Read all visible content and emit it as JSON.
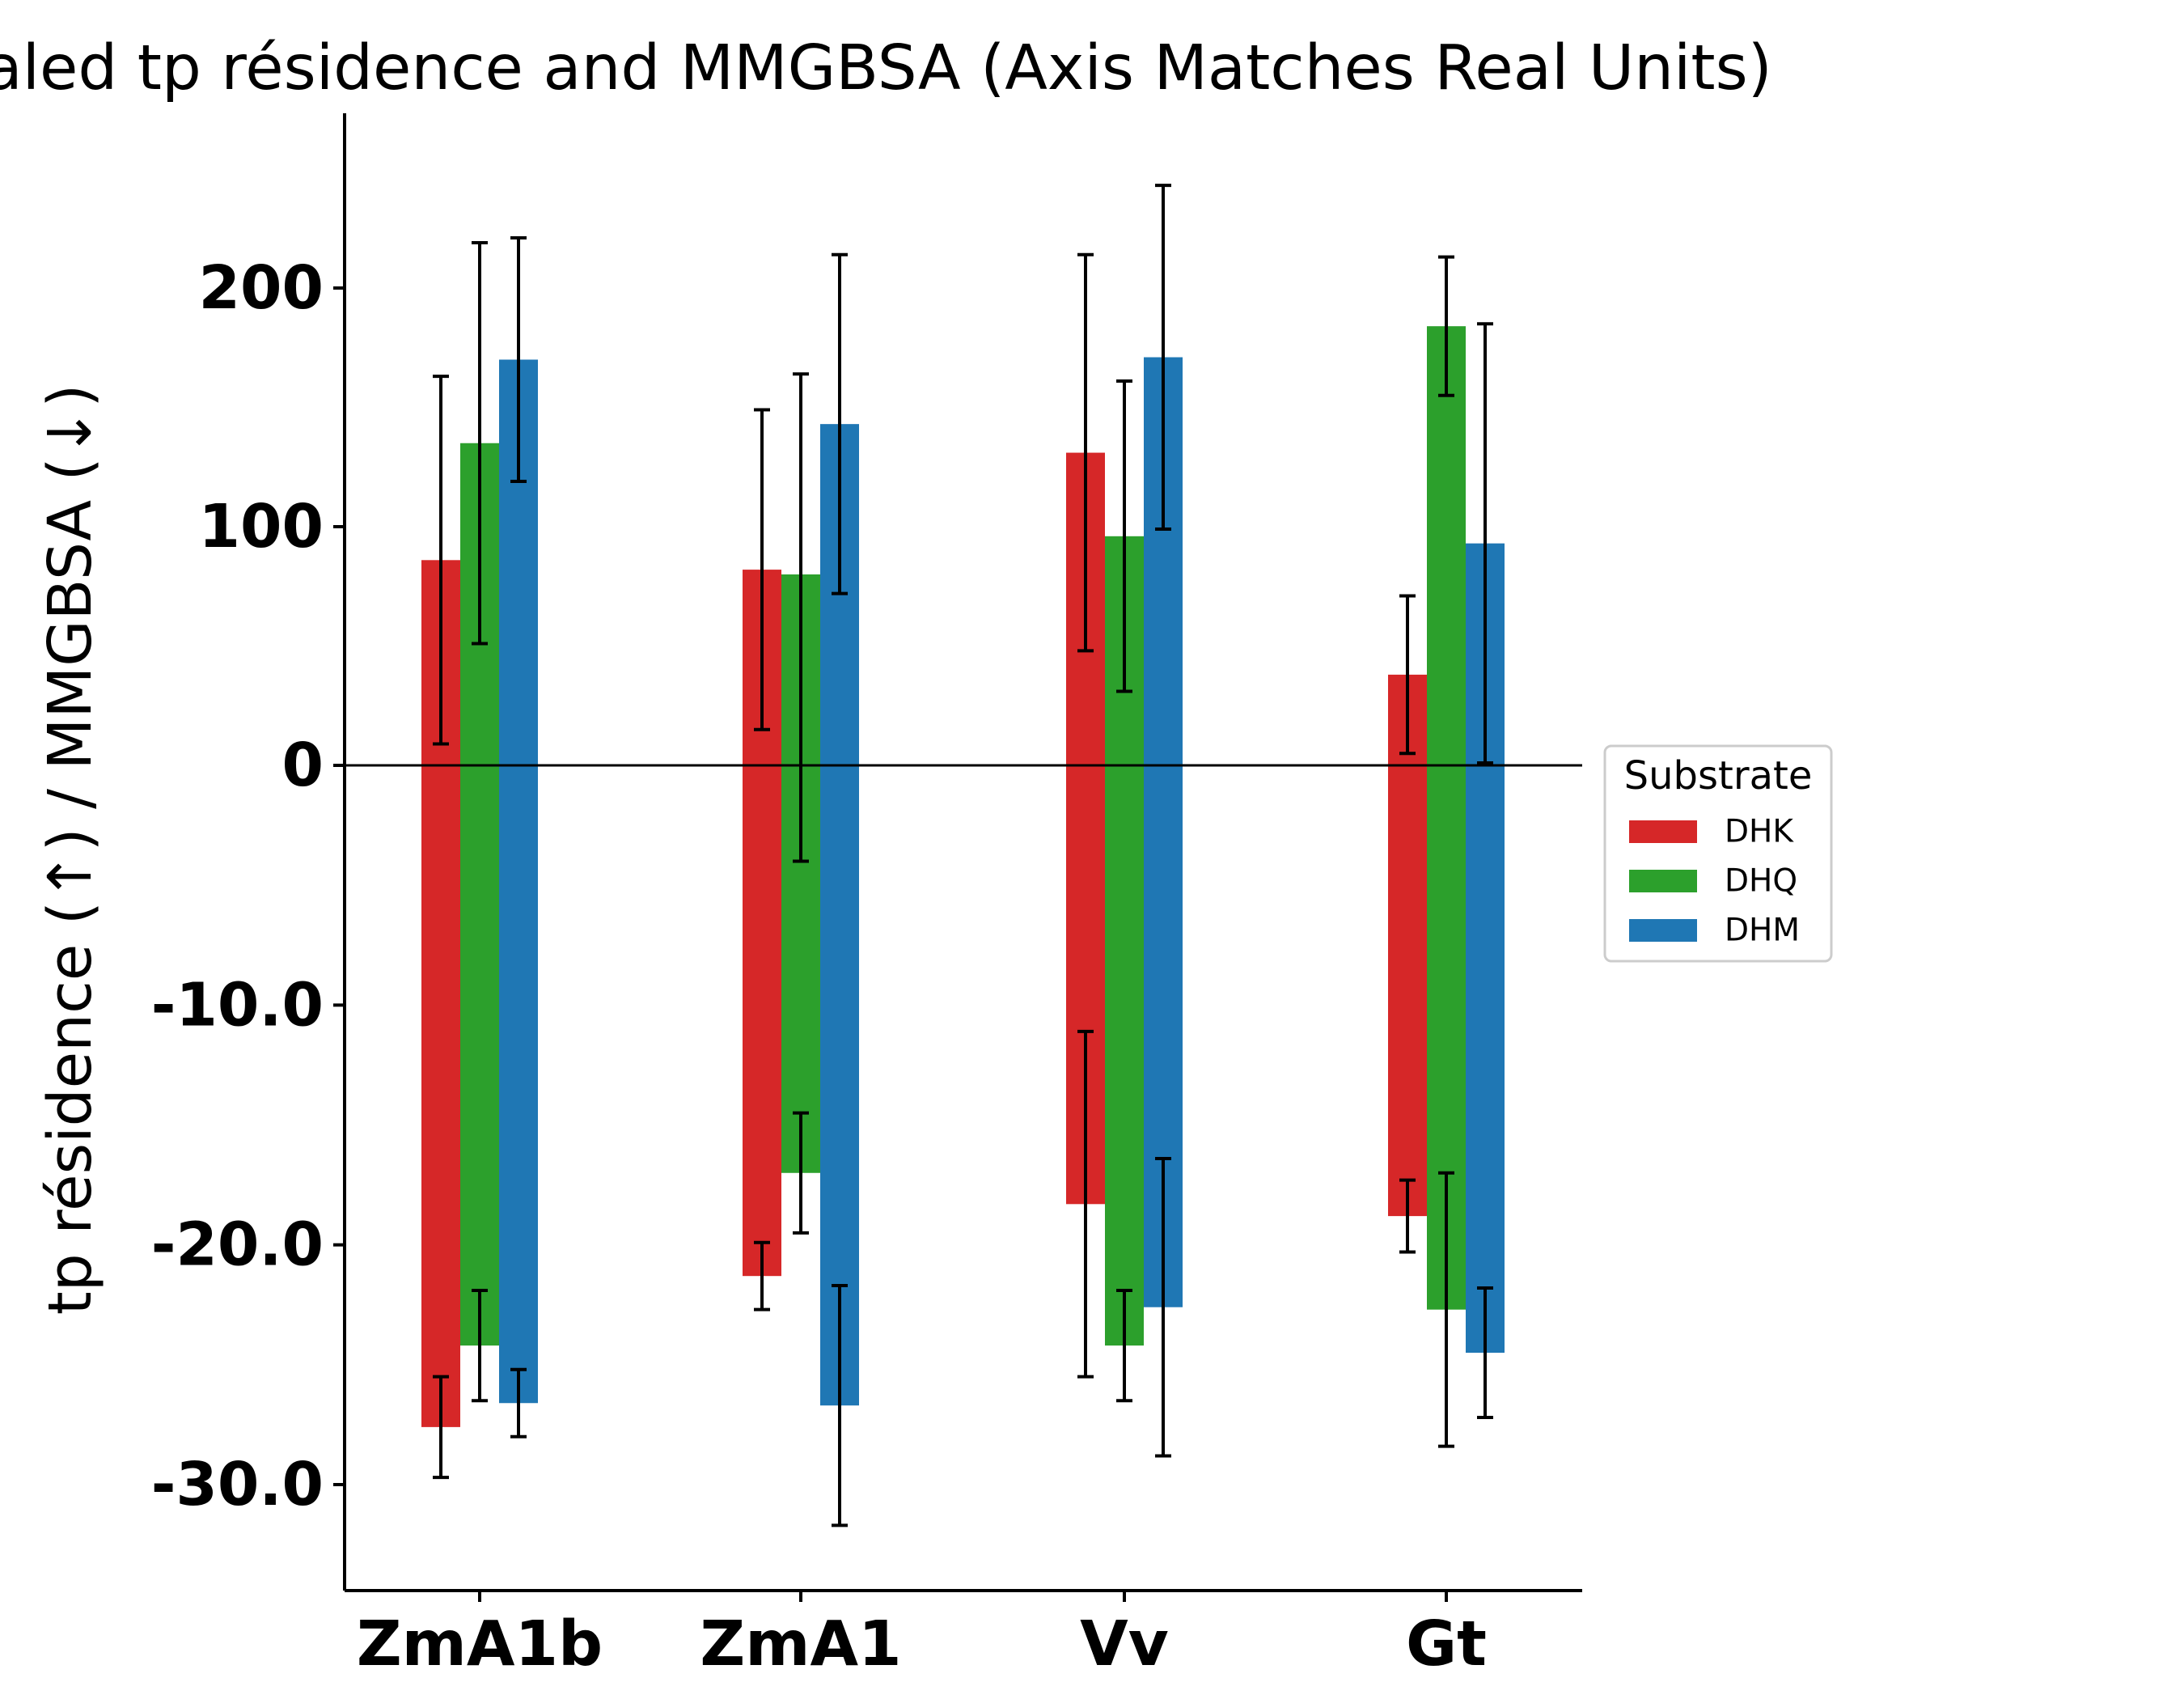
{
  "chart_data": {
    "type": "bar",
    "title": "Scaled tp résidence and MMGBSA (Axis Matches Real Units)",
    "xlabel": "",
    "ylabel": "tp résidence (↑) / MMGBSA (↓)",
    "categories": [
      "ZmA1b",
      "ZmA1",
      "Vv",
      "Gt"
    ],
    "y_ticks": [
      {
        "value": 200,
        "label": "200"
      },
      {
        "value": 100,
        "label": "100"
      },
      {
        "value": 0,
        "label": "0"
      },
      {
        "value": -10,
        "label": "-10.0"
      },
      {
        "value": -20,
        "label": "-20.0"
      },
      {
        "value": -30,
        "label": "-30.0"
      }
    ],
    "ylim_positive": [
      0,
      200
    ],
    "ylim_negative": [
      -30,
      0
    ],
    "positive_series_label": "tp résidence (↑)",
    "negative_series_label": "MMGBSA (↓)",
    "legend": {
      "title": "Substrate",
      "placement": "center-right"
    },
    "grid": false,
    "zero_line": true,
    "series": [
      {
        "name": "DHK",
        "color": "#d62728",
        "tp_residence": [
          86,
          82,
          131,
          38
        ],
        "tp_residence_err": [
          77,
          67,
          83,
          33
        ],
        "mmgbsa": [
          -27.6,
          -21.3,
          -18.3,
          -18.8
        ],
        "mmgbsa_err": [
          2.1,
          1.4,
          7.2,
          1.5
        ]
      },
      {
        "name": "DHQ",
        "color": "#2ca02c",
        "tp_residence": [
          135,
          80,
          96,
          184
        ],
        "tp_residence_err": [
          84,
          84,
          65,
          29
        ],
        "mmgbsa": [
          -24.2,
          -17.0,
          -24.2,
          -22.7
        ],
        "mmgbsa_err": [
          2.3,
          2.5,
          2.3,
          5.7
        ]
      },
      {
        "name": "DHM",
        "color": "#1f77b4",
        "tp_residence": [
          170,
          143,
          171,
          93
        ],
        "tp_residence_err": [
          51,
          71,
          72,
          92
        ],
        "mmgbsa": [
          -26.6,
          -26.7,
          -22.6,
          -24.5
        ],
        "mmgbsa_err": [
          1.4,
          5.0,
          6.2,
          2.7
        ]
      }
    ]
  }
}
